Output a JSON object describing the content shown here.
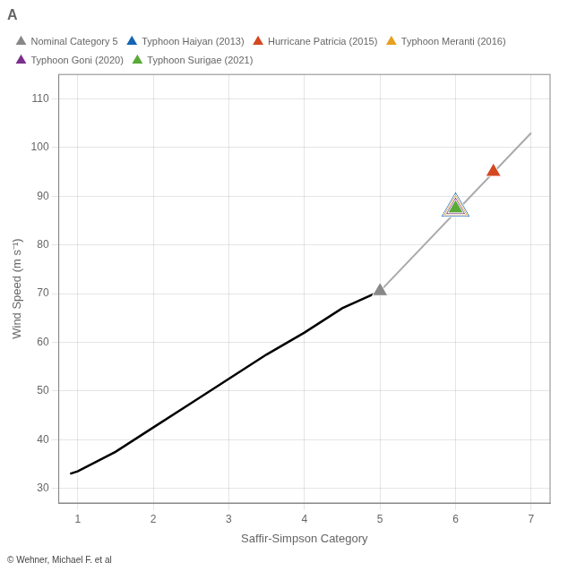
{
  "chart_data": {
    "type": "scatter",
    "title": "A",
    "xlabel": "Saffir-Simpson Category",
    "ylabel": "Wind Speed (m s⁻¹)",
    "annotations": [
      "© Wehner, Michael F. et al"
    ],
    "xlim": [
      0.75,
      7.25
    ],
    "ylim": [
      27,
      115
    ],
    "xticks": [
      1,
      2,
      3,
      4,
      5,
      6,
      7
    ],
    "yticks": [
      30,
      40,
      50,
      60,
      70,
      80,
      90,
      100,
      110
    ],
    "grid": true,
    "legend": "upper left",
    "series": [
      {
        "type": "line",
        "color": "#000000",
        "x": [
          0.9,
          1.0,
          1.5,
          2.0,
          2.5,
          3.0,
          3.5,
          4.0,
          4.5,
          5.0
        ],
        "values": [
          33.0,
          33.5,
          37.5,
          42.5,
          47.5,
          52.5,
          57.5,
          62.0,
          67.0,
          70.5
        ]
      },
      {
        "type": "line",
        "color": "#aaaaaa",
        "x": [
          5.0,
          7.0
        ],
        "values": [
          70.5,
          103.0
        ]
      },
      {
        "name": "Nominal Category 5",
        "type": "scatter",
        "marker": "triangle",
        "color": "#888888",
        "x": [
          5.0
        ],
        "values": [
          70.5
        ]
      },
      {
        "name": "Typhoon Haiyan (2013)",
        "type": "scatter",
        "marker": "triangle",
        "color": "#1464b4",
        "x": [
          6.0
        ],
        "values": [
          87.5
        ]
      },
      {
        "name": "Hurricane Patricia (2015)",
        "type": "scatter",
        "marker": "triangle",
        "color": "#d44820",
        "x": [
          6.5
        ],
        "values": [
          95.0
        ]
      },
      {
        "name": "Typhoon Meranti (2016)",
        "type": "scatter",
        "marker": "triangle",
        "color": "#e8a020",
        "x": [
          6.0
        ],
        "values": [
          87.5
        ]
      },
      {
        "name": "Typhoon Goni (2020)",
        "type": "scatter",
        "marker": "triangle",
        "color": "#7b2f8c",
        "x": [
          6.0
        ],
        "values": [
          87.5
        ]
      },
      {
        "name": "Typhoon Surigae (2021)",
        "type": "scatter",
        "marker": "triangle",
        "color": "#5aaa38",
        "x": [
          6.0
        ],
        "values": [
          87.5
        ]
      }
    ]
  }
}
